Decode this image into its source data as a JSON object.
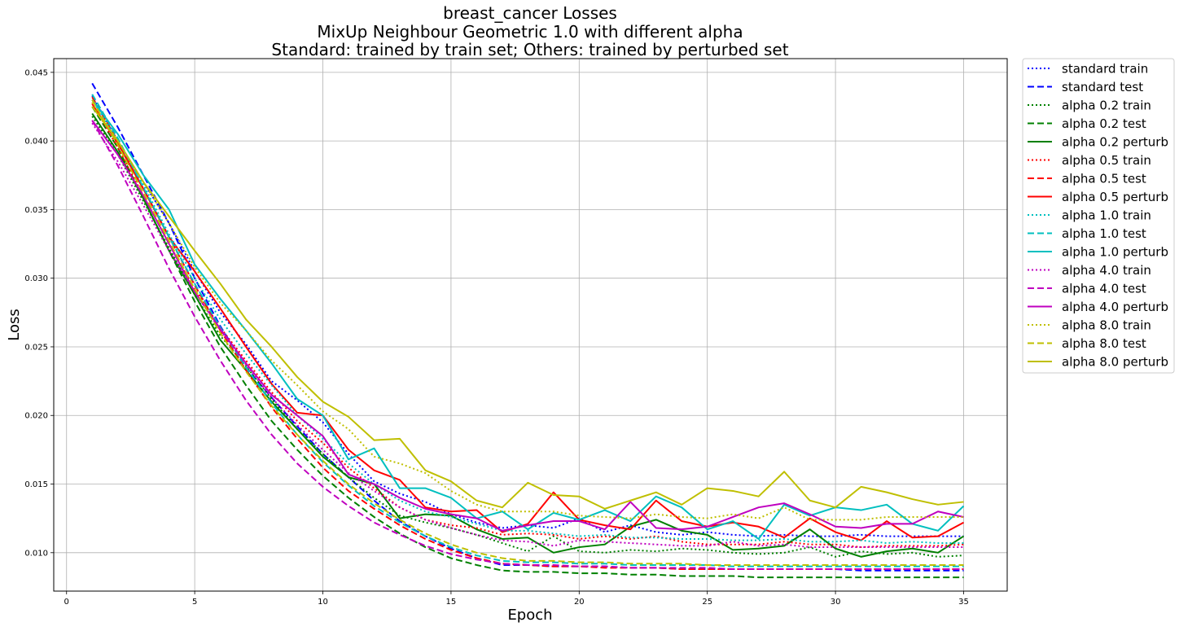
{
  "chart_data": {
    "type": "line",
    "title": [
      "breast_cancer Losses",
      "MixUp Neighbour Geometric 1.0 with different alpha",
      "Standard: trained by train set; Others: trained by perturbed set"
    ],
    "xlabel": "Epoch",
    "ylabel": "Loss",
    "xlim": [
      -0.5,
      36.7
    ],
    "ylim": [
      0.0072,
      0.046
    ],
    "xticks": [
      0,
      5,
      10,
      15,
      20,
      25,
      30,
      35
    ],
    "yticks": [
      0.01,
      0.015,
      0.02,
      0.025,
      0.03,
      0.035,
      0.04,
      0.045
    ],
    "ytick_labels": [
      "0.010",
      "0.015",
      "0.020",
      "0.025",
      "0.030",
      "0.035",
      "0.040",
      "0.045"
    ],
    "grid": true,
    "legend_position": "outside-right-top",
    "x": [
      1,
      2,
      3,
      4,
      5,
      6,
      7,
      8,
      9,
      10,
      11,
      12,
      13,
      14,
      15,
      16,
      17,
      18,
      19,
      20,
      21,
      22,
      23,
      24,
      25,
      26,
      27,
      28,
      29,
      30,
      31,
      32,
      33,
      34,
      35
    ],
    "series": [
      {
        "name": "standard train",
        "color": "#0000ff",
        "style": "dotted",
        "values": [
          0.0433,
          0.04,
          0.037,
          0.034,
          0.0305,
          0.0275,
          0.0252,
          0.0225,
          0.0211,
          0.0195,
          0.0172,
          0.0152,
          0.0143,
          0.0137,
          0.0128,
          0.0122,
          0.0118,
          0.012,
          0.0118,
          0.0125,
          0.0115,
          0.012,
          0.0115,
          0.0113,
          0.0115,
          0.0113,
          0.0112,
          0.0113,
          0.0112,
          0.0112,
          0.0113,
          0.0112,
          0.0112,
          0.0112,
          0.0112
        ]
      },
      {
        "name": "standard test",
        "color": "#0000ff",
        "style": "dashed",
        "values": [
          0.0442,
          0.041,
          0.0375,
          0.034,
          0.03,
          0.0265,
          0.0235,
          0.0213,
          0.0192,
          0.0172,
          0.0155,
          0.0138,
          0.0123,
          0.0112,
          0.0103,
          0.0096,
          0.0091,
          0.0091,
          0.009,
          0.009,
          0.009,
          0.0089,
          0.0089,
          0.0088,
          0.0088,
          0.0088,
          0.0088,
          0.0088,
          0.0088,
          0.0088,
          0.0087,
          0.0087,
          0.0087,
          0.0087,
          0.0087
        ]
      },
      {
        "name": "alpha 0.2 train",
        "color": "#008000",
        "style": "dotted",
        "values": [
          0.0418,
          0.039,
          0.0356,
          0.0322,
          0.0288,
          0.0258,
          0.0236,
          0.0212,
          0.019,
          0.0172,
          0.0155,
          0.014,
          0.0127,
          0.0122,
          0.0118,
          0.0113,
          0.0107,
          0.0101,
          0.0112,
          0.0101,
          0.01,
          0.0102,
          0.0101,
          0.0103,
          0.0102,
          0.01,
          0.0099,
          0.01,
          0.0104,
          0.0097,
          0.0101,
          0.0099,
          0.01,
          0.0097,
          0.0098
        ]
      },
      {
        "name": "alpha 0.2 test",
        "color": "#008000",
        "style": "dashed",
        "values": [
          0.0425,
          0.0395,
          0.0358,
          0.032,
          0.0283,
          0.025,
          0.0222,
          0.0196,
          0.0175,
          0.0156,
          0.014,
          0.0126,
          0.0114,
          0.0104,
          0.0096,
          0.0091,
          0.0087,
          0.0086,
          0.0086,
          0.0085,
          0.0085,
          0.0084,
          0.0084,
          0.0083,
          0.0083,
          0.0083,
          0.0082,
          0.0082,
          0.0082,
          0.0082,
          0.0082,
          0.0082,
          0.0082,
          0.0082,
          0.0082
        ]
      },
      {
        "name": "alpha 0.2 perturb",
        "color": "#008000",
        "style": "solid",
        "values": [
          0.042,
          0.0392,
          0.0358,
          0.032,
          0.0288,
          0.0255,
          0.0233,
          0.021,
          0.019,
          0.017,
          0.0155,
          0.015,
          0.0125,
          0.0128,
          0.0127,
          0.0117,
          0.011,
          0.0111,
          0.01,
          0.0104,
          0.0106,
          0.0119,
          0.0124,
          0.0116,
          0.0113,
          0.0102,
          0.0103,
          0.0105,
          0.0117,
          0.0103,
          0.0097,
          0.0101,
          0.0103,
          0.01,
          0.0112
        ]
      },
      {
        "name": "alpha 0.5 train",
        "color": "#ff0000",
        "style": "dotted",
        "values": [
          0.0428,
          0.0395,
          0.036,
          0.0325,
          0.0292,
          0.0264,
          0.024,
          0.0217,
          0.0196,
          0.018,
          0.0162,
          0.0147,
          0.0133,
          0.0124,
          0.012,
          0.0118,
          0.0113,
          0.0114,
          0.0113,
          0.011,
          0.0112,
          0.011,
          0.0112,
          0.0108,
          0.0106,
          0.0106,
          0.0106,
          0.0108,
          0.0106,
          0.0106,
          0.0104,
          0.0105,
          0.0105,
          0.0105,
          0.0106
        ]
      },
      {
        "name": "alpha 0.5 test",
        "color": "#ff0000",
        "style": "dashed",
        "values": [
          0.0432,
          0.04,
          0.0365,
          0.033,
          0.0295,
          0.0262,
          0.0233,
          0.0206,
          0.0183,
          0.0162,
          0.0145,
          0.0132,
          0.012,
          0.011,
          0.0102,
          0.0096,
          0.0092,
          0.0091,
          0.009,
          0.009,
          0.0089,
          0.0089,
          0.0089,
          0.0088,
          0.0088,
          0.0088,
          0.0088,
          0.0088,
          0.0088,
          0.0088,
          0.0088,
          0.0088,
          0.0088,
          0.0088,
          0.0088
        ]
      },
      {
        "name": "alpha 0.5 perturb",
        "color": "#ff0000",
        "style": "solid",
        "values": [
          0.0427,
          0.0398,
          0.0365,
          0.033,
          0.0305,
          0.0278,
          0.025,
          0.0223,
          0.0202,
          0.02,
          0.0175,
          0.016,
          0.0153,
          0.0133,
          0.013,
          0.0131,
          0.0115,
          0.0121,
          0.0144,
          0.0124,
          0.012,
          0.0117,
          0.0138,
          0.0123,
          0.0119,
          0.0122,
          0.0119,
          0.0111,
          0.0125,
          0.0115,
          0.0109,
          0.0123,
          0.0111,
          0.0112,
          0.0122
        ]
      },
      {
        "name": "alpha 1.0 train",
        "color": "#00bfbf",
        "style": "dotted",
        "values": [
          0.043,
          0.04,
          0.0368,
          0.0332,
          0.03,
          0.027,
          0.0245,
          0.0222,
          0.02,
          0.0183,
          0.0165,
          0.015,
          0.0138,
          0.013,
          0.0126,
          0.0121,
          0.0116,
          0.0116,
          0.0114,
          0.0112,
          0.0113,
          0.0111,
          0.0111,
          0.011,
          0.011,
          0.0109,
          0.0109,
          0.011,
          0.0108,
          0.0108,
          0.0109,
          0.0107,
          0.0108,
          0.0107,
          0.0107
        ]
      },
      {
        "name": "alpha 1.0 test",
        "color": "#00bfbf",
        "style": "dashed",
        "values": [
          0.0434,
          0.0402,
          0.0366,
          0.033,
          0.0296,
          0.0264,
          0.0235,
          0.0209,
          0.0186,
          0.0166,
          0.0149,
          0.0134,
          0.0122,
          0.0112,
          0.0104,
          0.0098,
          0.0094,
          0.0093,
          0.0093,
          0.0092,
          0.0092,
          0.0091,
          0.0091,
          0.0091,
          0.0091,
          0.009,
          0.009,
          0.009,
          0.009,
          0.009,
          0.009,
          0.009,
          0.009,
          0.009,
          0.009
        ]
      },
      {
        "name": "alpha 1.0 perturb",
        "color": "#00bfbf",
        "style": "solid",
        "values": [
          0.043,
          0.0405,
          0.0375,
          0.035,
          0.031,
          0.0285,
          0.0262,
          0.0238,
          0.0212,
          0.02,
          0.0168,
          0.0176,
          0.0147,
          0.0147,
          0.014,
          0.0125,
          0.013,
          0.0117,
          0.0129,
          0.0124,
          0.0131,
          0.0123,
          0.0141,
          0.0133,
          0.0117,
          0.0123,
          0.011,
          0.0135,
          0.0127,
          0.0133,
          0.0131,
          0.0135,
          0.0121,
          0.0116,
          0.0134
        ]
      },
      {
        "name": "alpha 4.0 train",
        "color": "#bf00bf",
        "style": "dotted",
        "values": [
          0.0413,
          0.0385,
          0.0353,
          0.032,
          0.029,
          0.0262,
          0.0237,
          0.0213,
          0.0193,
          0.0175,
          0.0158,
          0.0145,
          0.0133,
          0.0124,
          0.0118,
          0.0113,
          0.0109,
          0.0108,
          0.0105,
          0.0109,
          0.0108,
          0.0107,
          0.0106,
          0.0105,
          0.0105,
          0.0108,
          0.0105,
          0.0106,
          0.0104,
          0.0104,
          0.0104,
          0.0104,
          0.0104,
          0.0104,
          0.0104
        ]
      },
      {
        "name": "alpha 4.0 test",
        "color": "#bf00bf",
        "style": "dashed",
        "values": [
          0.0415,
          0.0382,
          0.0345,
          0.0307,
          0.0272,
          0.024,
          0.0211,
          0.0186,
          0.0165,
          0.0148,
          0.0134,
          0.0122,
          0.0113,
          0.0105,
          0.0099,
          0.0095,
          0.0092,
          0.0091,
          0.0091,
          0.009,
          0.009,
          0.0089,
          0.0089,
          0.0089,
          0.0089,
          0.0088,
          0.0088,
          0.0088,
          0.0088,
          0.0088,
          0.0088,
          0.0088,
          0.0088,
          0.0088,
          0.0088
        ]
      },
      {
        "name": "alpha 4.0 perturb",
        "color": "#bf00bf",
        "style": "solid",
        "values": [
          0.0415,
          0.039,
          0.036,
          0.0325,
          0.029,
          0.0263,
          0.0238,
          0.0215,
          0.02,
          0.0185,
          0.0157,
          0.015,
          0.014,
          0.0132,
          0.0128,
          0.0125,
          0.0116,
          0.012,
          0.0123,
          0.0123,
          0.0117,
          0.0137,
          0.0118,
          0.0117,
          0.0119,
          0.0126,
          0.0133,
          0.0136,
          0.0128,
          0.0119,
          0.0118,
          0.0121,
          0.0121,
          0.013,
          0.0126
        ]
      },
      {
        "name": "alpha 8.0 train",
        "color": "#bfbf00",
        "style": "dotted",
        "values": [
          0.0428,
          0.04,
          0.037,
          0.034,
          0.0308,
          0.0282,
          0.0262,
          0.024,
          0.0222,
          0.0203,
          0.019,
          0.017,
          0.0165,
          0.0158,
          0.0145,
          0.0135,
          0.013,
          0.013,
          0.013,
          0.0127,
          0.0126,
          0.0125,
          0.0128,
          0.0126,
          0.0125,
          0.0128,
          0.0125,
          0.0133,
          0.0124,
          0.0124,
          0.0124,
          0.0126,
          0.0126,
          0.0126,
          0.0126
        ]
      },
      {
        "name": "alpha 8.0 test",
        "color": "#bfbf00",
        "style": "dashed",
        "values": [
          0.043,
          0.0397,
          0.0362,
          0.0327,
          0.0292,
          0.026,
          0.0232,
          0.0207,
          0.0186,
          0.0167,
          0.015,
          0.0136,
          0.0124,
          0.0114,
          0.0106,
          0.01,
          0.0096,
          0.0094,
          0.0094,
          0.0093,
          0.0093,
          0.0092,
          0.0092,
          0.0092,
          0.0091,
          0.0091,
          0.0091,
          0.0091,
          0.0091,
          0.0091,
          0.0091,
          0.0091,
          0.0091,
          0.0091,
          0.0091
        ]
      },
      {
        "name": "alpha 8.0 perturb",
        "color": "#bfbf00",
        "style": "solid",
        "values": [
          0.0425,
          0.04,
          0.037,
          0.0345,
          0.032,
          0.0296,
          0.027,
          0.025,
          0.0228,
          0.021,
          0.0199,
          0.0182,
          0.0183,
          0.016,
          0.0152,
          0.0138,
          0.0133,
          0.0151,
          0.0142,
          0.0141,
          0.0132,
          0.0138,
          0.0144,
          0.0135,
          0.0147,
          0.0145,
          0.0141,
          0.0159,
          0.0138,
          0.0133,
          0.0148,
          0.0144,
          0.0139,
          0.0135,
          0.0137
        ]
      }
    ]
  }
}
